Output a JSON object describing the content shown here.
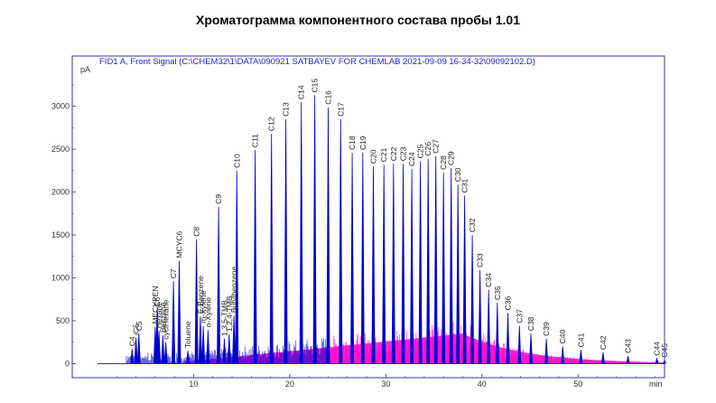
{
  "title": "Хроматограмма компонентного состава пробы 1.01",
  "chart_data": {
    "type": "line",
    "signal_label": "FID1 A, Front Signal (C:\\CHEM32\\1\\DATA\\090921 SATBAYEV FOR CHEMLAB 2021-09-09 16-34-32\\09092102.D)",
    "xlabel": "min",
    "ylabel": "pA",
    "xlim": [
      0,
      59
    ],
    "ylim": [
      -80,
      3450
    ],
    "x_ticks": [
      10,
      20,
      30,
      40,
      50
    ],
    "y_ticks": [
      0,
      500,
      1000,
      1500,
      2000,
      2500,
      3000
    ],
    "grid": false,
    "series_colors": {
      "signal": "#0000cc",
      "integration": "#ff00cc",
      "frame": "#3333aa"
    },
    "peaks": [
      {
        "label": "C4",
        "x": 3.6,
        "y": 170
      },
      {
        "label": "C5",
        "x": 4.3,
        "y": 350
      },
      {
        "label": "iC5",
        "x": 4.0,
        "y": 300
      },
      {
        "label": "C6",
        "x": 6.2,
        "y": 630
      },
      {
        "label": "MECYPEN",
        "x": 6.0,
        "y": 430
      },
      {
        "label": "Hexane",
        "x": 6.4,
        "y": 380
      },
      {
        "label": "Benzene",
        "x": 6.8,
        "y": 330
      },
      {
        "label": "cyclHexane",
        "x": 7.1,
        "y": 250
      },
      {
        "label": "C7",
        "x": 7.9,
        "y": 960
      },
      {
        "label": "MCYC6",
        "x": 8.5,
        "y": 1200
      },
      {
        "label": "Toluene",
        "x": 9.4,
        "y": 150
      },
      {
        "label": "C8",
        "x": 10.3,
        "y": 1450
      },
      {
        "label": "E-Benzene",
        "x": 10.7,
        "y": 550
      },
      {
        "label": "m-Xylene",
        "x": 11.0,
        "y": 440
      },
      {
        "label": "o-Xylene",
        "x": 11.5,
        "y": 390
      },
      {
        "label": "C9",
        "x": 12.6,
        "y": 1830
      },
      {
        "label": "1,3,5-TMB",
        "x": 13.2,
        "y": 290
      },
      {
        "label": "1,2,4-TMB",
        "x": 13.7,
        "y": 340
      },
      {
        "label": "Butylbenzene",
        "x": 14.2,
        "y": 560
      },
      {
        "label": "C10",
        "x": 14.5,
        "y": 2250
      },
      {
        "label": "C11",
        "x": 16.4,
        "y": 2490
      },
      {
        "label": "C12",
        "x": 18.1,
        "y": 2680
      },
      {
        "label": "C13",
        "x": 19.6,
        "y": 2850
      },
      {
        "label": "C14",
        "x": 21.2,
        "y": 3050
      },
      {
        "label": "C15",
        "x": 22.6,
        "y": 3130
      },
      {
        "label": "C16",
        "x": 24.0,
        "y": 2990
      },
      {
        "label": "C17",
        "x": 25.3,
        "y": 2850
      },
      {
        "label": "C18",
        "x": 26.5,
        "y": 2460
      },
      {
        "label": "C19",
        "x": 27.6,
        "y": 2460
      },
      {
        "label": "C20",
        "x": 28.7,
        "y": 2300
      },
      {
        "label": "C21",
        "x": 29.8,
        "y": 2320
      },
      {
        "label": "C22",
        "x": 30.8,
        "y": 2330
      },
      {
        "label": "C23",
        "x": 31.8,
        "y": 2330
      },
      {
        "label": "C24",
        "x": 32.7,
        "y": 2270
      },
      {
        "label": "C25",
        "x": 33.6,
        "y": 2360
      },
      {
        "label": "C26",
        "x": 34.4,
        "y": 2390
      },
      {
        "label": "C27",
        "x": 35.2,
        "y": 2420
      },
      {
        "label": "C28",
        "x": 36.0,
        "y": 2230
      },
      {
        "label": "C29",
        "x": 36.8,
        "y": 2280
      },
      {
        "label": "C30",
        "x": 37.5,
        "y": 2090
      },
      {
        "label": "C31",
        "x": 38.2,
        "y": 1960
      },
      {
        "label": "C32",
        "x": 39.0,
        "y": 1500
      },
      {
        "label": "C33",
        "x": 39.8,
        "y": 1090
      },
      {
        "label": "C34",
        "x": 40.7,
        "y": 860
      },
      {
        "label": "C35",
        "x": 41.6,
        "y": 710
      },
      {
        "label": "C36",
        "x": 42.7,
        "y": 590
      },
      {
        "label": "C37",
        "x": 43.9,
        "y": 440
      },
      {
        "label": "C38",
        "x": 45.1,
        "y": 350
      },
      {
        "label": "C39",
        "x": 46.7,
        "y": 290
      },
      {
        "label": "C40",
        "x": 48.4,
        "y": 200
      },
      {
        "label": "C41",
        "x": 50.3,
        "y": 160
      },
      {
        "label": "C42",
        "x": 52.6,
        "y": 130
      },
      {
        "label": "C43",
        "x": 55.2,
        "y": 90
      },
      {
        "label": "C44",
        "x": 58.2,
        "y": 60
      },
      {
        "label": "C45",
        "x": 59.0,
        "y": 40
      }
    ]
  }
}
